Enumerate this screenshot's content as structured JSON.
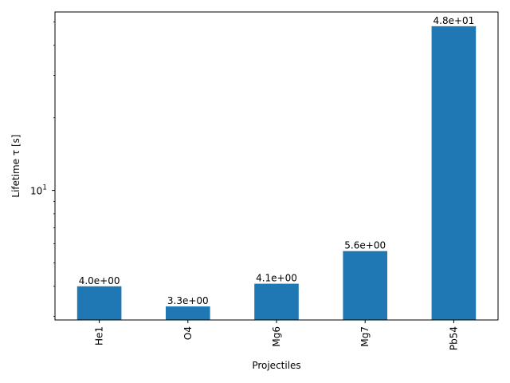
{
  "chart_data": {
    "type": "bar",
    "scale": "log",
    "categories": [
      "He1",
      "O4",
      "Mg6",
      "Mg7",
      "Pb54"
    ],
    "values": [
      4.0,
      3.3,
      4.1,
      5.6,
      48.0
    ],
    "data_labels": [
      "4.0e+00",
      "3.3e+00",
      "4.1e+00",
      "5.6e+00",
      "4.8e+01"
    ],
    "xlabel": "Projectiles",
    "ylabel": "Lifetime τ [s]",
    "ylim": [
      2.9,
      55
    ],
    "y_major_tick": {
      "value": 10,
      "base": "10",
      "exp": "1"
    },
    "y_minor_ticks": [
      3,
      4,
      5,
      6,
      7,
      8,
      9,
      20,
      30,
      40,
      50
    ],
    "grid": false,
    "legend": "none",
    "bar_color": "#1f77b4"
  }
}
